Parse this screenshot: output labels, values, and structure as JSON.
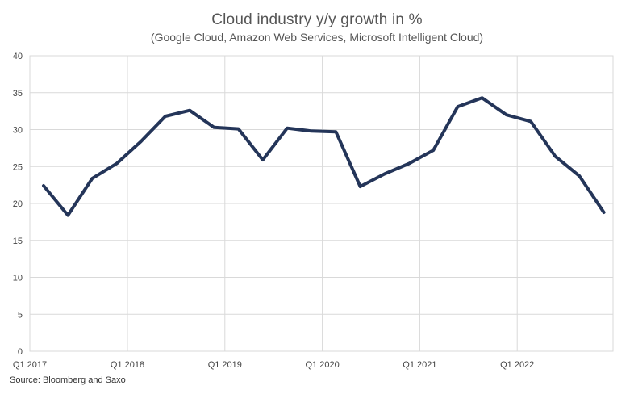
{
  "chart_data": {
    "type": "line",
    "title": "Cloud industry y/y growth in %",
    "subtitle": "(Google Cloud, Amazon Web Services, Microsoft Intelligent Cloud)",
    "source": "Source: Bloomberg and Saxo",
    "xlabel": "",
    "ylabel": "",
    "ylim": [
      0,
      40
    ],
    "yticks": [
      0,
      5,
      10,
      15,
      20,
      25,
      30,
      35,
      40
    ],
    "x_tick_labels": [
      "Q1 2017",
      "Q1 2018",
      "Q1 2019",
      "Q1 2020",
      "Q1 2021",
      "Q1 2022"
    ],
    "x_tick_index": [
      0,
      4,
      8,
      12,
      16,
      20
    ],
    "grid": true,
    "legend": "none",
    "series": [
      {
        "color": "#243559",
        "values": [
          22.4,
          18.4,
          23.4,
          25.4,
          28.4,
          31.8,
          32.6,
          30.3,
          30.1,
          25.9,
          30.2,
          29.8,
          29.7,
          22.3,
          24.0,
          25.4,
          27.2,
          33.1,
          34.3,
          32.0,
          31.1,
          26.4,
          23.7,
          18.8
        ]
      }
    ]
  }
}
